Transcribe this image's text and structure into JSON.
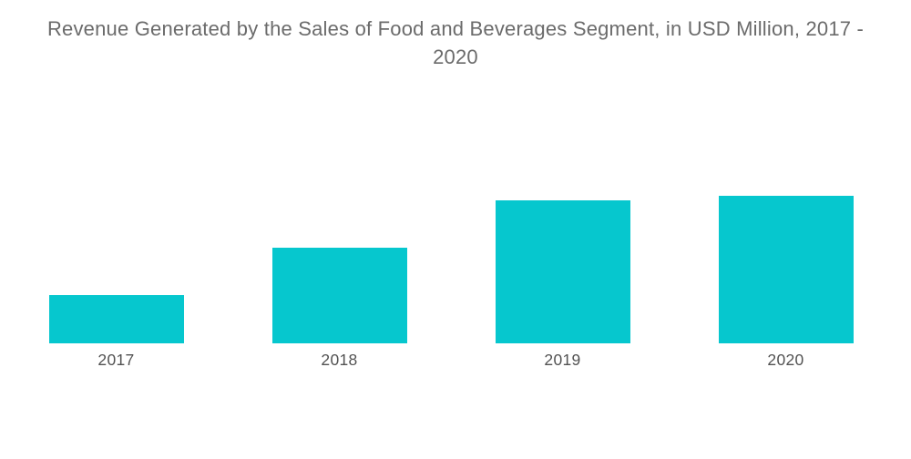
{
  "title": {
    "line1": "Revenue Generated by the Sales of Food and Beverages Segment, in USD Million, 2017 -",
    "line2": "2020"
  },
  "colors": {
    "bar": "#06c7ce",
    "title_text": "#6b6b6b",
    "axis_label_text": "#525252",
    "background": "#ffffff"
  },
  "chart_data": {
    "type": "bar",
    "title": "Revenue Generated by the Sales of Food and Beverages Segment, in USD Million, 2017 - 2020",
    "categories": [
      "2017",
      "2018",
      "2019",
      "2020"
    ],
    "values": [
      53,
      105,
      157,
      162
    ],
    "values_note": "No y-axis, gridlines or data labels are shown; values are relative bar heights estimated from pixels (arbitrary units).",
    "xlabel": "",
    "ylabel": "",
    "legend": "none",
    "grid": false,
    "axes_visible": false,
    "bar_color": "#06c7ce"
  }
}
